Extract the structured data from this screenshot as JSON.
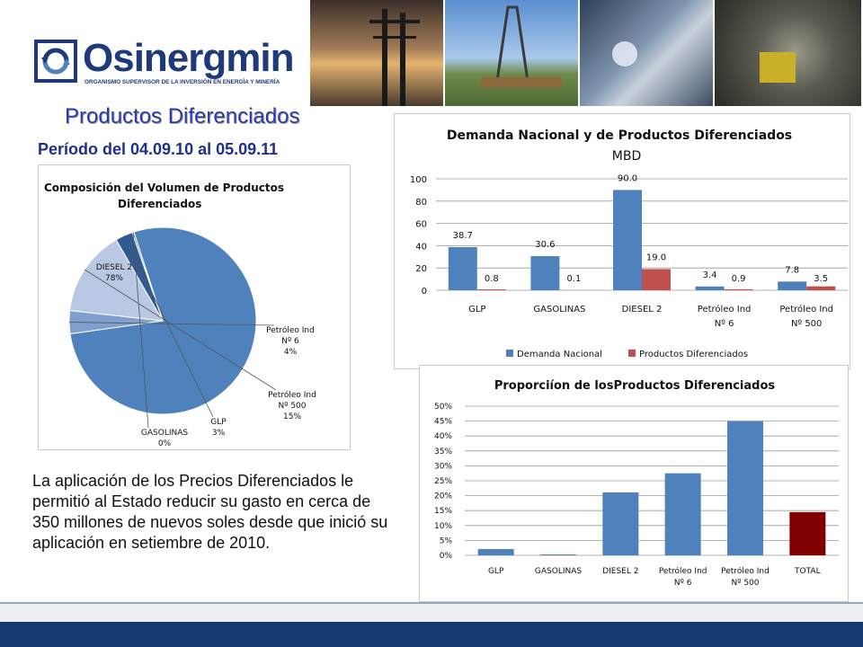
{
  "logo": {
    "name": "Osinergmin",
    "tagline": "ORGANISMO SUPERVISOR DE LA INVERSIÓN EN ENERGÍA Y MINERÍA"
  },
  "photos": [
    "photo-power-lines",
    "photo-oil-rig",
    "photo-pipeline-welding",
    "photo-mine-tunnel"
  ],
  "page_title": "Productos Diferenciados",
  "period": "Período del 04.09.10 al 05.09.11",
  "summary": "La aplicación de los Precios Diferenciados le permitió al Estado reducir su gasto en cerca de 350 millones de nuevos soles desde que inició su aplicación en setiembre de 2010.",
  "colors": {
    "blue": "#4f81bd",
    "red": "#c0504d",
    "maroon": "#7f0000",
    "title_blue": "#2a3aa8",
    "footer": "#143b72"
  },
  "chart_data": [
    {
      "type": "pie",
      "title": "Composición del Volumen de Productos Diferenciados",
      "slices": [
        {
          "label": "DIESEL 2",
          "percent_label": "78%",
          "value": 78
        },
        {
          "label": "Petróleo Ind Nº 6",
          "percent_label": "4%",
          "value": 4
        },
        {
          "label": "Petróleo Ind Nº 500",
          "percent_label": "15%",
          "value": 15
        },
        {
          "label": "GLP",
          "percent_label": "3%",
          "value": 3
        },
        {
          "label": "GASOLINAS",
          "percent_label": "0%",
          "value": 0.3
        }
      ]
    },
    {
      "type": "bar",
      "title": "Demanda Nacional y de Productos Diferenciados",
      "subtitle": "MBD",
      "categories": [
        "GLP",
        "GASOLINAS",
        "DIESEL 2",
        "Petróleo Ind Nº 6",
        "Petróleo Ind Nº 500"
      ],
      "series": [
        {
          "name": "Demanda Nacional",
          "values": [
            38.7,
            30.6,
            90.0,
            3.4,
            7.8
          ],
          "labels": [
            "38.7",
            "30.6",
            "90.0",
            "3.4",
            "7.8"
          ]
        },
        {
          "name": "Productos Diferenciados",
          "values": [
            0.8,
            0.1,
            19.0,
            0.9,
            3.5
          ],
          "labels": [
            "0.8",
            "0.1",
            "19.0",
            "0.9",
            "3.5"
          ]
        }
      ],
      "ylim": [
        0,
        100
      ],
      "yticks": [
        "0",
        "20",
        "40",
        "60",
        "80",
        "100"
      ],
      "legend": "bottom",
      "grid": true
    },
    {
      "type": "bar",
      "title": "Proporciíon de losProductos Diferenciados",
      "categories": [
        "GLP",
        "GASOLINAS",
        "DIESEL 2",
        "Petróleo Ind Nº 6",
        "Petróleo Ind Nº 500",
        "TOTAL"
      ],
      "values": [
        2.1,
        0.3,
        21.1,
        27.5,
        45,
        14.5
      ],
      "ylim": [
        0,
        50
      ],
      "yticks": [
        "0%",
        "5%",
        "10%",
        "15%",
        "20%",
        "25%",
        "30%",
        "35%",
        "40%",
        "45%",
        "50%"
      ],
      "highlight_last": true,
      "grid": true
    }
  ]
}
